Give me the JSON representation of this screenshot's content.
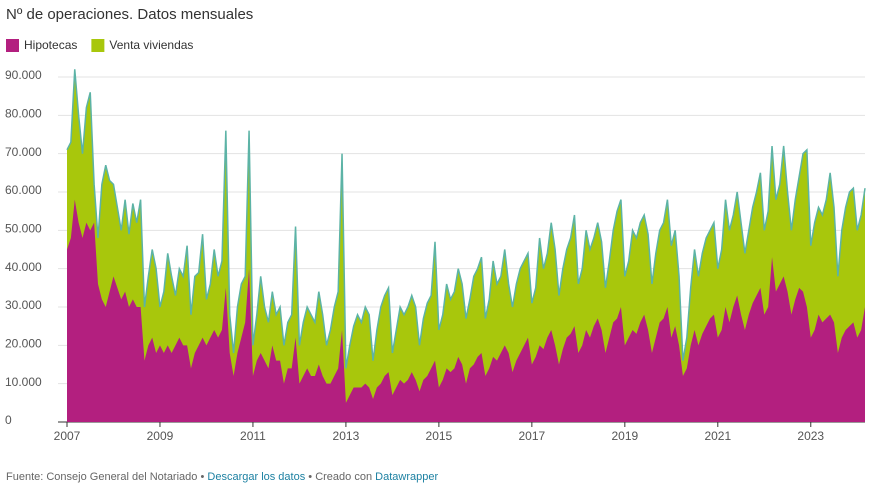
{
  "chart_data": {
    "type": "area",
    "title": "Nº de operaciones. Datos mensuales",
    "categories": [
      "2007",
      null,
      null,
      null,
      null,
      null,
      null,
      null,
      null,
      null,
      null,
      null,
      null,
      null,
      null,
      null,
      null,
      null,
      null,
      null,
      null,
      null,
      null,
      null,
      "2009",
      null,
      null,
      null,
      null,
      null,
      null,
      null,
      null,
      null,
      null,
      null,
      null,
      null,
      null,
      null,
      null,
      null,
      null,
      null,
      null,
      null,
      null,
      null,
      "2011",
      null,
      null,
      null,
      null,
      null,
      null,
      null,
      null,
      null,
      null,
      null,
      null,
      null,
      null,
      null,
      null,
      null,
      null,
      null,
      null,
      null,
      null,
      null,
      "2013",
      null,
      null,
      null,
      null,
      null,
      null,
      null,
      null,
      null,
      null,
      null,
      null,
      null,
      null,
      null,
      null,
      null,
      null,
      null,
      null,
      null,
      null,
      null,
      "2015",
      null,
      null,
      null,
      null,
      null,
      null,
      null,
      null,
      null,
      null,
      null,
      null,
      null,
      null,
      null,
      null,
      null,
      null,
      null,
      null,
      null,
      null,
      null,
      "2017",
      null,
      null,
      null,
      null,
      null,
      null,
      null,
      null,
      null,
      null,
      null,
      null,
      null,
      null,
      null,
      null,
      null,
      null,
      null,
      null,
      null,
      null,
      null,
      "2019",
      null,
      null,
      null,
      null,
      null,
      null,
      null,
      null,
      null,
      null,
      null,
      null,
      null,
      null,
      null,
      null,
      null,
      null,
      null,
      null,
      null,
      null,
      null,
      "2021",
      null,
      null,
      null,
      null,
      null,
      null,
      null,
      null,
      null,
      null,
      null,
      null,
      null,
      null,
      null,
      null,
      null,
      null,
      null,
      null,
      null,
      null,
      null,
      "2023",
      null,
      null,
      null,
      null,
      null,
      null,
      null,
      null,
      null,
      null,
      null,
      null,
      null,
      null
    ],
    "series": [
      {
        "name": "Venta viviendas",
        "color": "#a8c70c",
        "line_color": "#5cb3a6",
        "values": [
          71000,
          73000,
          92000,
          80000,
          70000,
          82000,
          86000,
          62000,
          48000,
          62000,
          67000,
          63000,
          62000,
          56000,
          50000,
          58000,
          49000,
          57000,
          52000,
          58000,
          30000,
          38000,
          45000,
          40000,
          30000,
          34000,
          44000,
          38000,
          33000,
          40000,
          38000,
          46000,
          28000,
          38000,
          39000,
          49000,
          32000,
          36000,
          45000,
          38000,
          42000,
          76000,
          28000,
          18000,
          30000,
          36000,
          38000,
          76000,
          20000,
          28000,
          38000,
          30000,
          26000,
          34000,
          28000,
          30000,
          20000,
          26000,
          28000,
          51000,
          20000,
          26000,
          30000,
          28000,
          26000,
          34000,
          28000,
          20000,
          24000,
          30000,
          34000,
          70000,
          14000,
          20000,
          25000,
          28000,
          26000,
          30000,
          28000,
          16000,
          24000,
          30000,
          33000,
          35000,
          18000,
          24000,
          30000,
          28000,
          30000,
          33000,
          30000,
          20000,
          27000,
          31000,
          33000,
          47000,
          24000,
          28000,
          36000,
          32000,
          34000,
          40000,
          36000,
          27000,
          32000,
          38000,
          40000,
          43000,
          27000,
          32000,
          42000,
          36000,
          38000,
          45000,
          36000,
          30000,
          36000,
          40000,
          42000,
          44000,
          31000,
          35000,
          48000,
          40000,
          44000,
          52000,
          45000,
          33000,
          40000,
          45000,
          48000,
          54000,
          36000,
          40000,
          50000,
          45000,
          48000,
          52000,
          47000,
          35000,
          42000,
          50000,
          55000,
          58000,
          38000,
          42000,
          50000,
          48000,
          52000,
          54000,
          49000,
          36000,
          44000,
          50000,
          52000,
          58000,
          46000,
          50000,
          38000,
          16000,
          22000,
          35000,
          45000,
          38000,
          44000,
          48000,
          50000,
          52000,
          40000,
          45000,
          58000,
          50000,
          54000,
          60000,
          52000,
          44000,
          50000,
          56000,
          60000,
          65000,
          50000,
          55000,
          72000,
          58000,
          62000,
          72000,
          60000,
          50000,
          58000,
          64000,
          70000,
          71000,
          46000,
          52000,
          56000,
          54000,
          58000,
          65000,
          56000,
          38000,
          50000,
          56000,
          60000,
          61000,
          50000,
          54000,
          61000
        ]
      },
      {
        "name": "Hipotecas",
        "color": "#b31f7f",
        "values": [
          45000,
          48000,
          58000,
          52000,
          48000,
          52000,
          50000,
          52000,
          36000,
          32000,
          30000,
          34000,
          38000,
          35000,
          32000,
          34000,
          30000,
          32000,
          30000,
          30000,
          16000,
          20000,
          22000,
          18000,
          20000,
          18000,
          20000,
          18000,
          20000,
          22000,
          20000,
          20000,
          14000,
          18000,
          20000,
          22000,
          20000,
          22000,
          24000,
          22000,
          24000,
          35000,
          18000,
          12000,
          18000,
          22000,
          26000,
          40000,
          12000,
          16000,
          18000,
          16000,
          14000,
          20000,
          16000,
          16000,
          10000,
          14000,
          14000,
          22000,
          10000,
          12000,
          14000,
          12000,
          12000,
          15000,
          12000,
          10000,
          10000,
          12000,
          14000,
          24000,
          5000,
          7000,
          9000,
          9000,
          9000,
          10000,
          9000,
          6000,
          9000,
          10000,
          12000,
          13000,
          7000,
          9000,
          11000,
          10000,
          11000,
          13000,
          11000,
          8000,
          11000,
          12000,
          14000,
          16000,
          9000,
          11000,
          14000,
          13000,
          14000,
          17000,
          15000,
          10000,
          14000,
          15000,
          17000,
          18000,
          12000,
          14000,
          17000,
          16000,
          18000,
          20000,
          18000,
          13000,
          16000,
          18000,
          20000,
          22000,
          15000,
          17000,
          20000,
          19000,
          22000,
          24000,
          20000,
          15000,
          19000,
          22000,
          23000,
          25000,
          18000,
          20000,
          24000,
          22000,
          25000,
          27000,
          24000,
          18000,
          22000,
          26000,
          27000,
          30000,
          20000,
          22000,
          24000,
          23000,
          26000,
          28000,
          24000,
          18000,
          22000,
          26000,
          27000,
          30000,
          22000,
          25000,
          20000,
          12000,
          14000,
          20000,
          24000,
          20000,
          23000,
          25000,
          27000,
          28000,
          22000,
          24000,
          30000,
          26000,
          30000,
          33000,
          28000,
          24000,
          28000,
          31000,
          33000,
          35000,
          28000,
          30000,
          43000,
          34000,
          36000,
          38000,
          34000,
          28000,
          32000,
          35000,
          34000,
          30000,
          22000,
          24000,
          28000,
          26000,
          27000,
          28000,
          26000,
          18000,
          22000,
          24000,
          25000,
          26000,
          22000,
          24000,
          30000
        ]
      }
    ],
    "legend_order": [
      1,
      0
    ],
    "ylim": [
      0,
      90000
    ],
    "yticks": [
      0,
      {
        "value": 10000,
        "label": "10.000"
      },
      {
        "value": 20000,
        "label": "20.000"
      },
      {
        "value": 30000,
        "label": "30.000"
      },
      {
        "value": 40000,
        "label": "40.000"
      },
      {
        "value": 50000,
        "label": "50.000"
      },
      {
        "value": 60000,
        "label": "60.000"
      },
      {
        "value": 70000,
        "label": "70.000"
      },
      {
        "value": 80000,
        "label": "80.000"
      },
      {
        "value": 90000,
        "label": "90.000"
      }
    ],
    "grid": true,
    "footer": {
      "source": "Fuente: Consejo General del Notariado",
      "sep": "•",
      "download": "Descargar los datos",
      "credit": "Creado con",
      "tool": "Datawrapper"
    }
  }
}
